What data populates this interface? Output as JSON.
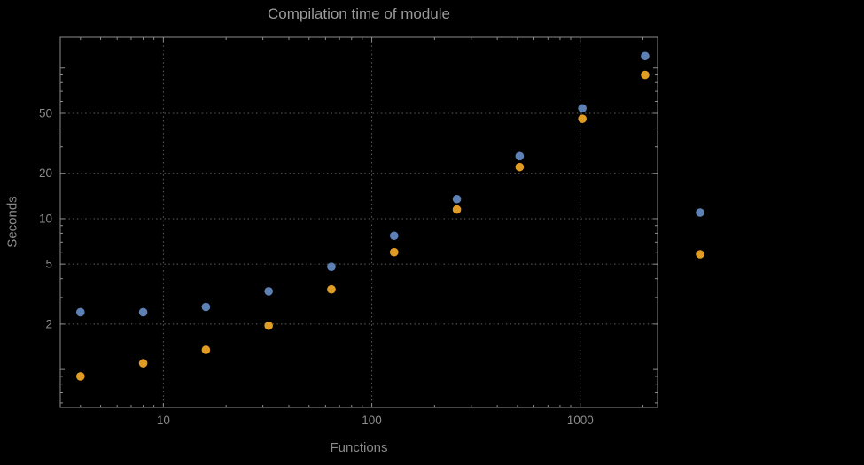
{
  "colors": {
    "background": "#000000",
    "grid": "#5f5f5f",
    "frame": "#8c8c8c",
    "title_text": "#9a9a9a",
    "tick_text": "#8a8a8a",
    "axis_label_text": "#8a8a8a",
    "series_blue": "#5e81b5",
    "series_orange": "#e19c24"
  },
  "chart_data": {
    "type": "scatter",
    "title": "Compilation time of module",
    "xlabel": "Functions",
    "ylabel": "Seconds",
    "x_scale": "log",
    "y_scale": "log",
    "xlim": [
      3.2,
      2350
    ],
    "ylim": [
      0.56,
      160
    ],
    "x_ticks": [
      10,
      100,
      1000
    ],
    "y_ticks": [
      2,
      5,
      10,
      20,
      50
    ],
    "grid": true,
    "x": [
      4,
      8,
      16,
      32,
      64,
      128,
      256,
      512,
      1024,
      2048
    ],
    "series": [
      {
        "name": "",
        "color": "#5e81b5",
        "values": [
          2.4,
          2.4,
          2.6,
          3.3,
          4.8,
          7.7,
          13.5,
          26,
          54,
          120
        ]
      },
      {
        "name": "",
        "color": "#e19c24",
        "values": [
          0.9,
          1.1,
          1.35,
          1.95,
          3.4,
          6.0,
          11.5,
          22,
          46,
          90
        ]
      }
    ],
    "legend": {
      "position": "right-center",
      "markers_only": true
    }
  }
}
